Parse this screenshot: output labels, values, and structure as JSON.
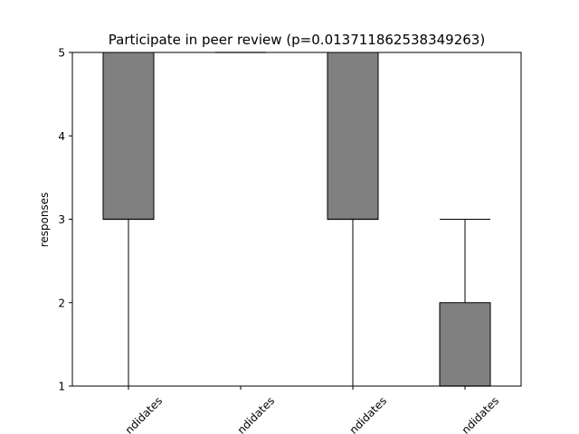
{
  "chart_data": {
    "type": "box",
    "title": "Participate in peer review (p=0.013711862538349263)",
    "xlabel": "",
    "ylabel": "responses",
    "ylim": [
      1,
      5
    ],
    "yticks": [
      1,
      2,
      3,
      4,
      5
    ],
    "categories": [
      "...ndidates",
      "...ndidates",
      "...ndidates",
      "...ndidates"
    ],
    "box_color": "#808080",
    "boxes": [
      {
        "whisker_low": 1,
        "q1": 3,
        "median": 3,
        "q3": 5,
        "whisker_high": 5
      },
      {
        "whisker_low": 5,
        "q1": 5,
        "median": 5,
        "q3": 5,
        "whisker_high": 5
      },
      {
        "whisker_low": 1,
        "q1": 3,
        "median": 3,
        "q3": 5,
        "whisker_high": 5
      },
      {
        "whisker_low": 1,
        "q1": 1,
        "median": 1,
        "q3": 2,
        "whisker_high": 3
      }
    ],
    "grid": false,
    "legend": "none"
  }
}
